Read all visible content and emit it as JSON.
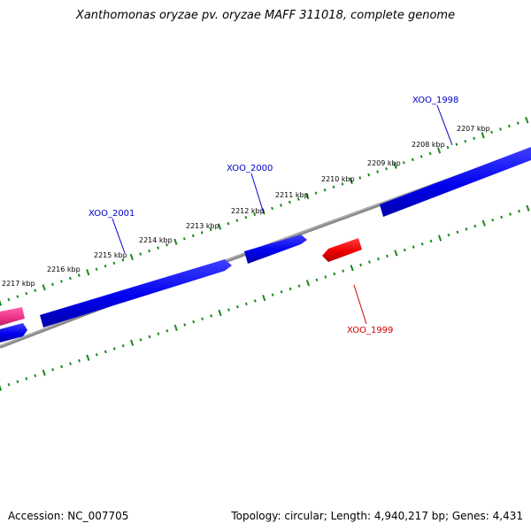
{
  "title": "Xanthomonas oryzae pv. oryzae MAFF 311018, complete genome",
  "footer": {
    "accession": "Accession: NC_007705",
    "summary": "Topology: circular; Length: 4,940,217 bp; Genes: 4,431"
  },
  "colors": {
    "forward_gene": "#1010e0",
    "reverse_gene": "#ee0000",
    "pink_gene": "#ee3388",
    "backbone": "#808080",
    "ticks": "#1a8a1a",
    "forward_label": "#0000cc",
    "reverse_label": "#cc0000"
  },
  "kbp_labels": [
    "2207 kbp",
    "2208 kbp",
    "2209 kbp",
    "2210 kbp",
    "2211 kbp",
    "2212 kbp",
    "2213 kbp",
    "2214 kbp",
    "2215 kbp",
    "2216 kbp",
    "2217 kbp"
  ],
  "gene_labels": [
    {
      "id": "XOO_1998",
      "strand": "forward"
    },
    {
      "id": "XOO_2000",
      "strand": "forward"
    },
    {
      "id": "XOO_2001",
      "strand": "forward"
    },
    {
      "id": "XOO_1999",
      "strand": "reverse"
    }
  ]
}
